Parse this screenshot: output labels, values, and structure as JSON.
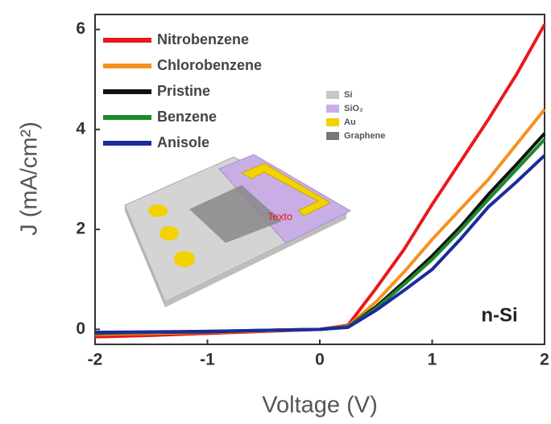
{
  "chart_data": {
    "type": "line",
    "x_label": "Voltage (V)",
    "y_label": "J (mA/cm²)",
    "x": [
      -2,
      -1.5,
      -1,
      -0.5,
      0,
      0.25,
      0.5,
      0.75,
      1,
      1.25,
      1.5,
      1.75,
      2
    ],
    "series": [
      {
        "name": "Nitrobenzene",
        "color": "#e8191c",
        "values": [
          -0.15,
          -0.12,
          -0.08,
          -0.04,
          0,
          0.08,
          0.82,
          1.6,
          2.5,
          3.35,
          4.2,
          5.1,
          6.1
        ]
      },
      {
        "name": "Chlorobenzene",
        "color": "#f7901e",
        "values": [
          -0.1,
          -0.08,
          -0.06,
          -0.03,
          0,
          0.06,
          0.55,
          1.15,
          1.8,
          2.4,
          3.0,
          3.7,
          4.4
        ]
      },
      {
        "name": "Pristine",
        "color": "#111111",
        "values": [
          -0.08,
          -0.06,
          -0.05,
          -0.02,
          0,
          0.05,
          0.45,
          0.95,
          1.47,
          2.05,
          2.7,
          3.3,
          3.92
        ]
      },
      {
        "name": "Benzene",
        "color": "#1a8a2a",
        "values": [
          -0.07,
          -0.06,
          -0.04,
          -0.02,
          0,
          0.05,
          0.42,
          0.9,
          1.4,
          1.98,
          2.6,
          3.2,
          3.8
        ]
      },
      {
        "name": "Anisole",
        "color": "#1c2a9e",
        "values": [
          -0.06,
          -0.05,
          -0.04,
          -0.02,
          0,
          0.04,
          0.38,
          0.78,
          1.2,
          1.8,
          2.45,
          2.95,
          3.48
        ]
      }
    ],
    "xlim": [
      -2,
      2
    ],
    "ylim": [
      -0.3,
      6.3
    ],
    "xticks": [
      -2,
      -1,
      0,
      1,
      2
    ],
    "yticks": [
      0,
      2,
      4,
      6
    ],
    "annotation": "n-Si",
    "inset_labels": [
      "Si",
      "SiO₂",
      "Au",
      "Graphene"
    ],
    "inset_colors": [
      "#c8c8c8",
      "#c9aee6",
      "#f2d200",
      "#777777"
    ],
    "inset_text": "Texto",
    "legend": "upper left"
  }
}
